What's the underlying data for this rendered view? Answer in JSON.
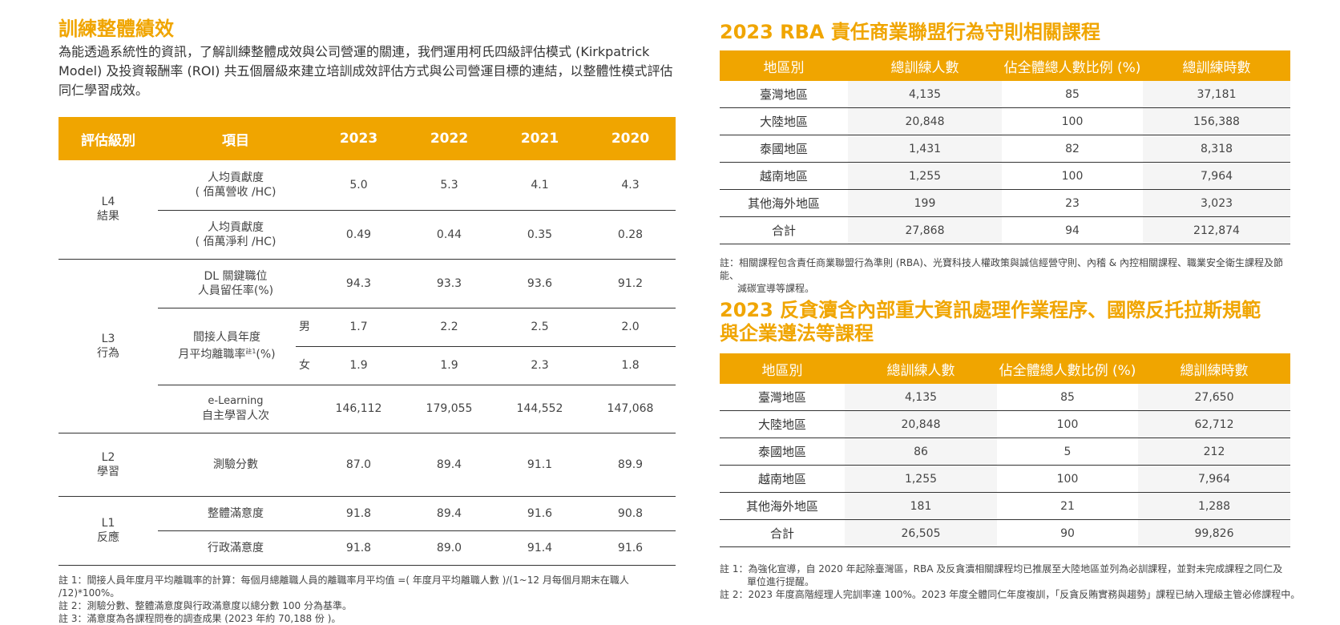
{
  "left": {
    "title": "訓練整體績效",
    "intro": "為能透過系統性的資訊，了解訓練整體成效與公司營運的關連，我們運用柯氏四級評估模式 (Kirkpatrick Model) 及投資報酬率 (ROI) 共五個層級來建立培訓成效評估方式與公司營運目標的連結，以整體性模式評估同仁學習成效。",
    "headers": [
      "評估級別",
      "項目",
      "2023",
      "2022",
      "2021",
      "2020"
    ],
    "levels": {
      "l4": [
        "L4",
        "結果"
      ],
      "l3": [
        "L3",
        "行為"
      ],
      "l2": [
        "L2",
        "學習"
      ],
      "l1": [
        "L1",
        "反應"
      ]
    },
    "rows": {
      "r1": {
        "item": [
          "人均貢獻度",
          "( 佰萬營收 /HC)"
        ],
        "v": [
          "5.0",
          "5.3",
          "4.1",
          "4.3"
        ]
      },
      "r2": {
        "item": [
          "人均貢獻度",
          "( 佰萬淨利 /HC)"
        ],
        "v": [
          "0.49",
          "0.44",
          "0.35",
          "0.28"
        ]
      },
      "r3": {
        "item": [
          "DL 關鍵職位",
          "人員留任率(%)"
        ],
        "v": [
          "94.3",
          "93.3",
          "93.6",
          "91.2"
        ]
      },
      "r4": {
        "item": [
          "間接人員年度",
          "月平均離職率",
          "註1",
          "(%)"
        ],
        "gender": "男",
        "v": [
          "1.7",
          "2.2",
          "2.5",
          "2.0"
        ]
      },
      "r5": {
        "gender": "女",
        "v": [
          "1.9",
          "1.9",
          "2.3",
          "1.8"
        ]
      },
      "r6": {
        "item": [
          "e-Learning",
          "自主學習人次"
        ],
        "v": [
          "146,112",
          "179,055",
          "144,552",
          "147,068"
        ]
      },
      "r7": {
        "item": [
          "測驗分數"
        ],
        "v": [
          "87.0",
          "89.4",
          "91.1",
          "89.9"
        ]
      },
      "r8": {
        "item": [
          "整體滿意度"
        ],
        "v": [
          "91.8",
          "89.4",
          "91.6",
          "90.8"
        ]
      },
      "r9": {
        "item": [
          "行政滿意度"
        ],
        "v": [
          "91.8",
          "89.0",
          "91.4",
          "91.6"
        ]
      }
    },
    "notes": [
      "註 1：間接人員年度月平均離職率的計算：每個月總離職人員的離職率月平均值 =( 年度月平均離職人數 )/(1~12 月每個月期末在職人 /12)*100%。",
      "註 2：測驗分數、整體滿意度與行政滿意度以總分數 100 分為基準。",
      "註 3：滿意度為各課程問卷的調查成果 (2023 年約 70,188 份 )。"
    ]
  },
  "rba": {
    "title": "2023 RBA 責任商業聯盟行為守則相關課程",
    "headers": [
      "地區別",
      "總訓練人數",
      "佔全體總人數比例 (%)",
      "總訓練時數"
    ],
    "rows": [
      [
        "臺灣地區",
        "4,135",
        "85",
        "37,181"
      ],
      [
        "大陸地區",
        "20,848",
        "100",
        "156,388"
      ],
      [
        "泰國地區",
        "1,431",
        "82",
        "8,318"
      ],
      [
        "越南地區",
        "1,255",
        "100",
        "7,964"
      ],
      [
        "其他海外地區",
        "199",
        "23",
        "3,023"
      ],
      [
        "合計",
        "27,868",
        "94",
        "212,874"
      ]
    ],
    "note_line1": "註：相關課程包含責任商業聯盟行為準則 (RBA)、光寶科技人權政策與誠信經營守則、內稽 & 內控相關課程、職業安全衛生課程及節能、",
    "note_line2": "減碳宣導等課程。"
  },
  "anti": {
    "title_line1": "2023 反貪瀆含內部重大資訊處理作業程序、國際反托拉斯規範",
    "title_line2": "與企業遵法等課程",
    "headers": [
      "地區別",
      "總訓練人數",
      "佔全體總人數比例 (%)",
      "總訓練時數"
    ],
    "rows": [
      [
        "臺灣地區",
        "4,135",
        "85",
        "27,650"
      ],
      [
        "大陸地區",
        "20,848",
        "100",
        "62,712"
      ],
      [
        "泰國地區",
        "86",
        "5",
        "212"
      ],
      [
        "越南地區",
        "1,255",
        "100",
        "7,964"
      ],
      [
        "其他海外地區",
        "181",
        "21",
        "1,288"
      ],
      [
        "合計",
        "26,505",
        "90",
        "99,826"
      ]
    ],
    "note1_line1": "註 1：為強化宣導，自 2020 年起除臺灣區，RBA 及反貪瀆相關課程均已推展至大陸地區並列為必訓課程，並對未完成課程之同仁及",
    "note1_line2": "單位進行提醒。",
    "note2": "註 2：2023 年度高階經理人完訓率達 100%。2023 年度全體同仁年度複訓，「反貪反賄實務與趨勢」課程已納入理級主管必修課程中。"
  }
}
